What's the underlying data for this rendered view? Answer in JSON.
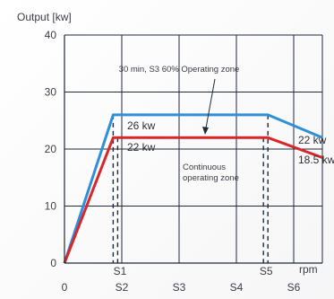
{
  "chart_data": {
    "type": "line",
    "ylabel": "Output [kw]",
    "xlabel": "rpm",
    "ylim": [
      0,
      40
    ],
    "yticks": [
      0,
      10,
      20,
      30,
      40
    ],
    "xlim": [
      0,
      4.5
    ],
    "x_ticks_bottom": [
      {
        "label": "0",
        "x": 0
      },
      {
        "label": "S2",
        "x": 1
      },
      {
        "label": "S3",
        "x": 2
      },
      {
        "label": "S4",
        "x": 3
      },
      {
        "label": "S6",
        "x": 4
      }
    ],
    "x_ticks_upper": [
      {
        "label": "S1",
        "x": 1
      },
      {
        "label": "S5",
        "x": 3.55
      }
    ],
    "grid": true,
    "series": [
      {
        "key": "s3",
        "color": "#2f8fd8",
        "x": [
          0,
          0.85,
          3.55,
          4.5
        ],
        "values": [
          0,
          26,
          26,
          22
        ]
      },
      {
        "key": "continuous",
        "color": "#d8262b",
        "x": [
          0,
          0.85,
          3.55,
          4.5
        ],
        "values": [
          0,
          22,
          22,
          18.5
        ]
      }
    ],
    "annotations": {
      "s3_zone": [
        "30 min, S3 60% Operating zone"
      ],
      "continuous_zone": [
        "Continuous",
        "operating zone"
      ]
    },
    "data_labels": {
      "s3_plateau": "26 kw",
      "cont_plateau": "22 kw",
      "s3_end": "22 kw",
      "cont_end": "18.5 kw"
    }
  }
}
